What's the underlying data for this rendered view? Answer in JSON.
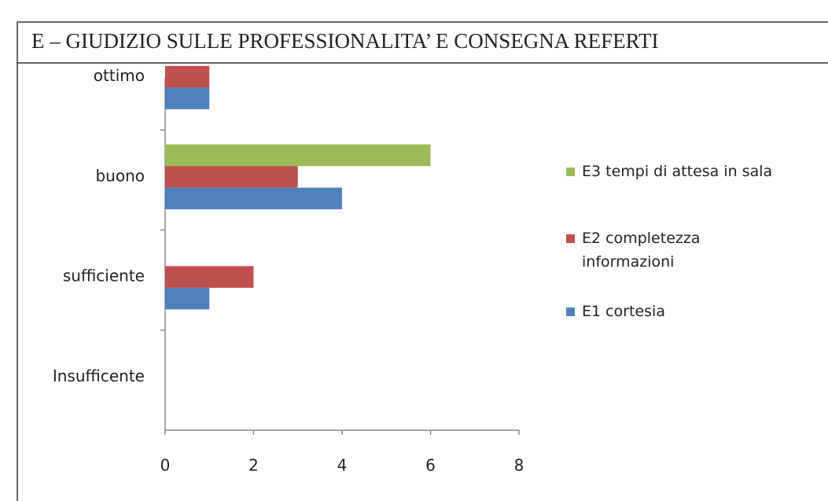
{
  "chart_data": {
    "type": "bar",
    "orientation": "horizontal",
    "title": "E – GIUDIZIO SULLE PROFESSIONALITA’ E CONSEGNA REFERTI",
    "categories": [
      "ottimo",
      "buono",
      "sufficiente",
      "Insufficente"
    ],
    "series": [
      {
        "name": "E3 tempi di attesa in sala",
        "color": "#9bbb59",
        "values": [
          0,
          6,
          0,
          0
        ]
      },
      {
        "name": "E2 completezza informazioni",
        "color": "#c0504d",
        "values": [
          1,
          3,
          2,
          0
        ]
      },
      {
        "name": "E1 cortesia",
        "color": "#4f81bd",
        "values": [
          1,
          4,
          1,
          0
        ]
      }
    ],
    "xlim": [
      0,
      8
    ],
    "xticks": [
      0,
      2,
      4,
      6,
      8
    ],
    "legend": "right"
  }
}
